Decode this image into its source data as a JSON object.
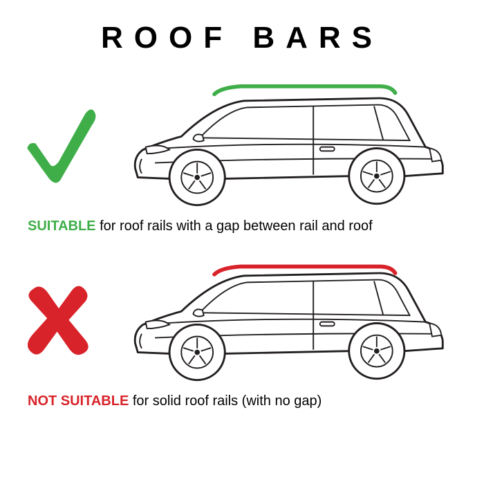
{
  "title": "ROOF BARS",
  "colors": {
    "good": "#3fae49",
    "bad": "#d8232a",
    "text": "#000000",
    "line": "#231f20",
    "background": "#ffffff"
  },
  "suitable": {
    "label": "SUITABLE",
    "rest": " for roof rails with a gap between rail and roof"
  },
  "notSuitable": {
    "label": "NOT SUITABLE",
    "rest": " for solid roof rails (with no gap)"
  },
  "style": {
    "title_fontsize": 44,
    "title_letterspacing": 16,
    "caption_fontsize": 20,
    "stroke_thin": 2,
    "stroke_thick": 3,
    "rail_stroke": 6,
    "rail_good_gap": 8,
    "rail_bad_gap": 0
  }
}
